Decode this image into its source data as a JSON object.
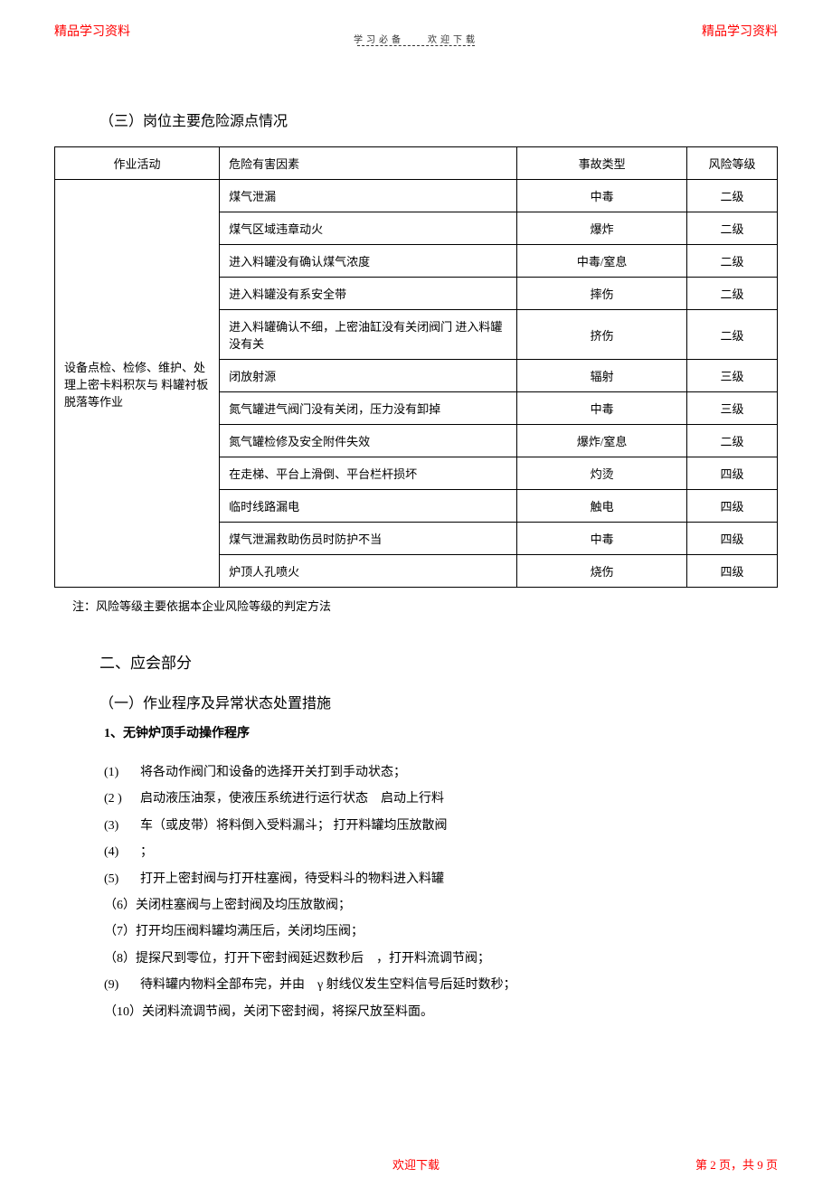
{
  "header": {
    "left": "精品学习资料",
    "right": "精品学习资料",
    "center_left": "学习必备",
    "center_right": "欢迎下载"
  },
  "section3_title": "（三）岗位主要危险源点情况",
  "table": {
    "headers": {
      "activity": "作业活动",
      "hazard": "危险有害因素",
      "accident": "事故类型",
      "risk": "风险等级"
    },
    "activity_cell": "设备点检、检修、维护、处理上密卡料积灰与 料罐衬板　脱落等作业",
    "rows": [
      {
        "hazard": "煤气泄漏",
        "accident": "中毒",
        "risk": "二级"
      },
      {
        "hazard": "煤气区域违章动火",
        "accident": "爆炸",
        "risk": "二级"
      },
      {
        "hazard": "进入料罐没有确认煤气浓度",
        "accident": "中毒/窒息",
        "risk": "二级"
      },
      {
        "hazard": "进入料罐没有系安全带",
        "accident": "摔伤",
        "risk": "二级"
      },
      {
        "hazard": "进入料罐确认不细，上密油缸没有关闭阀门 进入料罐没有关",
        "accident": "挤伤",
        "risk": "二级"
      },
      {
        "hazard": "闭放射源",
        "accident": "辐射",
        "risk": "三级"
      },
      {
        "hazard": "氮气罐进气阀门没有关闭，压力没有卸掉",
        "accident": "中毒",
        "risk": "三级"
      },
      {
        "hazard": "氮气罐检修及安全附件失效",
        "accident": "爆炸/窒息",
        "risk": "二级"
      },
      {
        "hazard": "在走梯、平台上滑倒、平台栏杆损坏",
        "accident": "灼烫",
        "risk": "四级"
      },
      {
        "hazard": "临时线路漏电",
        "accident": "触电",
        "risk": "四级"
      },
      {
        "hazard": "煤气泄漏救助伤员时防护不当",
        "accident": "中毒",
        "risk": "四级"
      },
      {
        "hazard": "炉顶人孔喷火",
        "accident": "烧伤",
        "risk": "四级"
      }
    ]
  },
  "table_note": "注：风险等级主要依据本企业风险等级的判定方法",
  "section2": {
    "title": "二、应会部分",
    "sub1_title": "（一）作业程序及异常状态处置措施",
    "item1_title": "1、无钟炉顶手动操作程序",
    "steps": [
      {
        "num": "(1)",
        "text": "将各动作阀门和设备的选择开关打到手动状态；"
      },
      {
        "num": "(2 )",
        "text": "启动液压油泵，使液压系统进行运行状态　启动上行料"
      },
      {
        "num": "(3)",
        "text": "车（或皮带）将料倒入受料漏斗； 打开料罐均压放散阀"
      },
      {
        "num": "(4)",
        "text": "；"
      },
      {
        "num": "(5)",
        "text": "打开上密封阀与打开柱塞阀，待受料斗的物料进入料罐"
      },
      {
        "num": "",
        "text": "（6）关闭柱塞阀与上密封阀及均压放散阀；"
      },
      {
        "num": "",
        "text": "（7）打开均压阀料罐均满压后，关闭均压阀；"
      },
      {
        "num": "",
        "text": "（8）提探尺到零位，打开下密封阀延迟数秒后　，打开料流调节阀；"
      },
      {
        "num": "(9)",
        "text": "待料罐内物料全部布完，并由　γ 射线仪发生空料信号后延时数秒；"
      },
      {
        "num": "",
        "text": "（10）关闭料流调节阀，关闭下密封阀，将探尺放至料面。"
      }
    ]
  },
  "footer": {
    "center": "欢迎下载",
    "right": "第 2 页，共 9 页"
  }
}
